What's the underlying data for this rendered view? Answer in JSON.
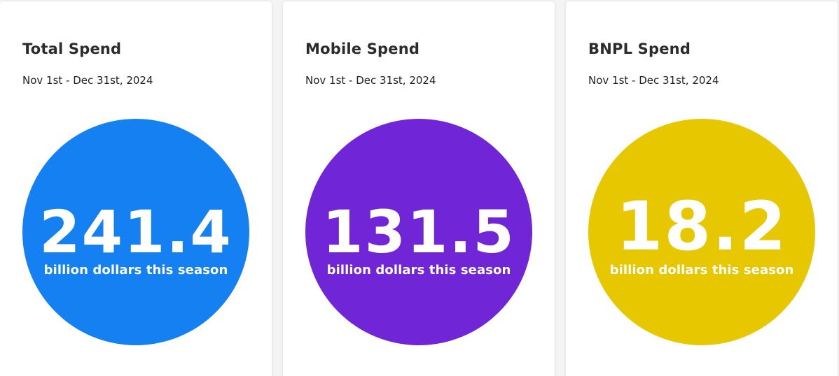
{
  "cards": [
    {
      "title": "Total Spend",
      "date_range": "Nov 1st - Dec 31st, 2024",
      "value": "241.4",
      "caption": "billion dollars this season",
      "color": "#1580f2"
    },
    {
      "title": "Mobile Spend",
      "date_range": "Nov 1st - Dec 31st, 2024",
      "value": "131.5",
      "caption": "billion dollars this season",
      "color": "#7026d6"
    },
    {
      "title": "BNPL Spend",
      "date_range": "Nov 1st - Dec 31st, 2024",
      "value": "18.2",
      "caption": "billion dollars this season",
      "color": "#e6c700"
    }
  ]
}
